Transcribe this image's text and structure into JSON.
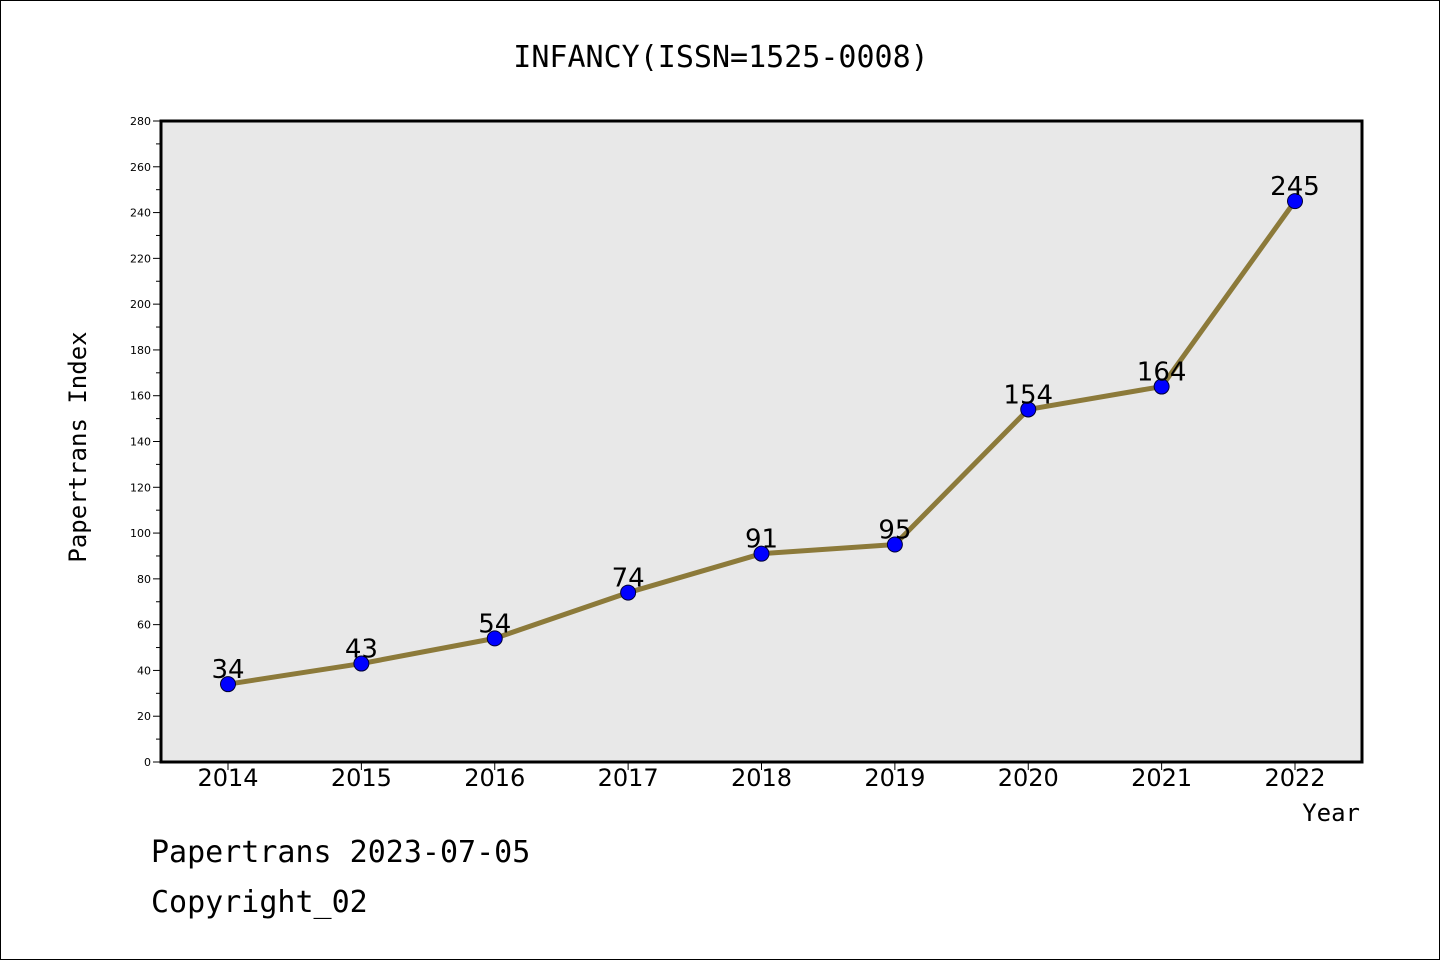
{
  "chart_data": {
    "type": "line",
    "title": "INFANCY(ISSN=1525-0008)",
    "xlabel": "Year",
    "ylabel": "Papertrans Index",
    "categories": [
      "2014",
      "2015",
      "2016",
      "2017",
      "2018",
      "2019",
      "2020",
      "2021",
      "2022"
    ],
    "values": [
      34,
      43,
      54,
      74,
      91,
      95,
      154,
      164,
      245
    ],
    "data_labels": [
      "34",
      "43",
      "54",
      "74",
      "91",
      "95",
      "154",
      "164",
      "245"
    ],
    "ylim": [
      0,
      280
    ],
    "y_ticks": [
      0,
      20,
      40,
      60,
      80,
      100,
      120,
      140,
      160,
      180,
      200,
      220,
      240,
      260,
      280
    ],
    "y_tick_labels": [
      "0",
      "20",
      "40",
      "60",
      "80",
      "100",
      "120",
      "140",
      "160",
      "180",
      "200",
      "220",
      "240",
      "260",
      "280"
    ],
    "grid": false,
    "legend": "none",
    "colors": {
      "line": "#8c7a3a",
      "marker": "#0000ff",
      "plot_background": "#e8e8e8"
    }
  },
  "footer": {
    "date_text": "Papertrans 2023-07-05",
    "copyright_text": "Copyright_02"
  }
}
